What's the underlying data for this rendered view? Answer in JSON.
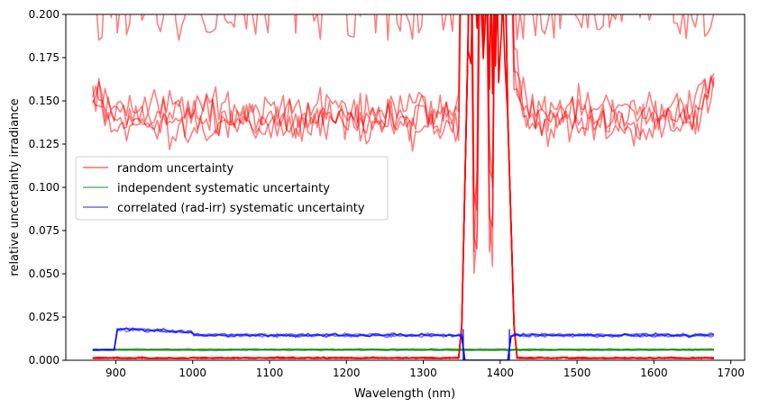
{
  "chart_data": {
    "type": "line",
    "title": "",
    "xlabel": "Wavelength (nm)",
    "ylabel": "relative uncertainty irradiance",
    "xlim": [
      835,
      1718
    ],
    "ylim": [
      0.0,
      0.2
    ],
    "xticks": [
      900,
      1000,
      1100,
      1200,
      1300,
      1400,
      1500,
      1600,
      1700
    ],
    "yticks": [
      0.0,
      0.025,
      0.05,
      0.075,
      0.1,
      0.125,
      0.15,
      0.175,
      0.2
    ],
    "xtick_labels": [
      "900",
      "1000",
      "1100",
      "1200",
      "1300",
      "1400",
      "1500",
      "1600",
      "1700"
    ],
    "ytick_labels": [
      "0.000",
      "0.025",
      "0.050",
      "0.075",
      "0.100",
      "0.125",
      "0.150",
      "0.175",
      "0.200"
    ],
    "grid": false,
    "legend_position": "center-left",
    "legend": [
      {
        "label": "random uncertainty",
        "color": "#ff0000"
      },
      {
        "label": "independent systematic uncertainty",
        "color": "#008000"
      },
      {
        "label": "correlated (rad-irr) systematic uncertainty",
        "color": "#0000ff"
      }
    ],
    "wavelength_range": [
      870,
      1680
    ],
    "absorption_band": [
      1350,
      1415
    ],
    "series": [
      {
        "name": "random uncertainty",
        "color": "#ff0000",
        "alpha": 0.5,
        "baseline": 0.138,
        "noise": 0.012,
        "edge_start": 0.16,
        "edge_end": 0.17,
        "note": "several noisy curves ~0.13-0.15, some above 0.2, spikes in 1350-1415 nm band"
      },
      {
        "name": "random uncertainty (low)",
        "color": "#ff0000",
        "alpha": 1.0,
        "baseline": 0.001,
        "noise": 0.0008
      },
      {
        "name": "independent systematic uncertainty",
        "color": "#008000",
        "alpha": 0.5,
        "baseline": 0.0058,
        "noise": 0.0003
      },
      {
        "name": "correlated (rad-irr) systematic uncertainty",
        "color": "#0000ff",
        "alpha": 0.5,
        "start_value": 0.006,
        "step_at": 900,
        "peak": 0.018,
        "baseline": 0.0145,
        "noise": 0.0015
      }
    ]
  }
}
